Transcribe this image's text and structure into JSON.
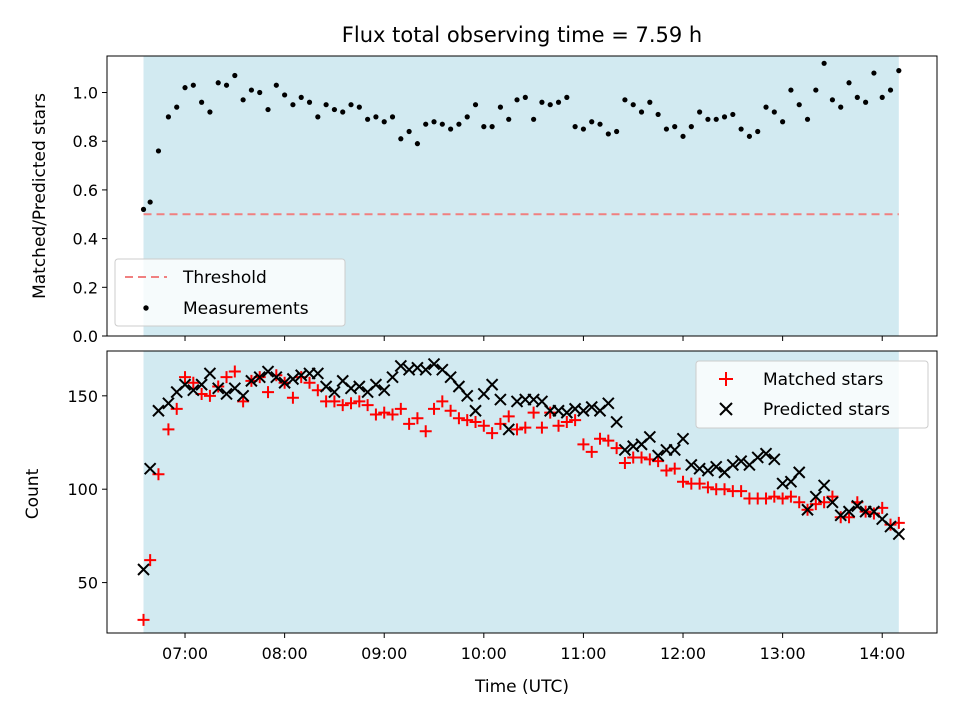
{
  "chart_data": [
    {
      "type": "scatter",
      "title": "Flux total observing time = 7.59 h",
      "xlabel": "",
      "ylabel": "Matched/Predicted stars",
      "xlim": [
        "06:13",
        "14:33"
      ],
      "ylim": [
        0.0,
        1.15
      ],
      "yticks": [
        "0.0",
        "0.2",
        "0.4",
        "0.6",
        "0.8",
        "1.0"
      ],
      "grid": false,
      "legend_position": "lower-left",
      "shaded_interval": [
        "06:35",
        "14:10"
      ],
      "colors": {
        "shade": "#add8e6",
        "threshold": "#f08080",
        "measurements": "#000000"
      },
      "threshold": {
        "name": "Threshold",
        "value": 0.5
      },
      "series": [
        {
          "name": "Measurements",
          "x": [
            "06:35",
            "06:39",
            "06:44",
            "06:50",
            "06:55",
            "07:00",
            "07:05",
            "07:10",
            "07:15",
            "07:20",
            "07:25",
            "07:30",
            "07:35",
            "07:40",
            "07:45",
            "07:50",
            "07:55",
            "08:00",
            "08:05",
            "08:10",
            "08:15",
            "08:20",
            "08:25",
            "08:30",
            "08:35",
            "08:40",
            "08:45",
            "08:50",
            "08:55",
            "09:00",
            "09:05",
            "09:10",
            "09:15",
            "09:20",
            "09:25",
            "09:30",
            "09:35",
            "09:40",
            "09:45",
            "09:50",
            "09:55",
            "10:00",
            "10:05",
            "10:10",
            "10:15",
            "10:20",
            "10:25",
            "10:30",
            "10:35",
            "10:40",
            "10:45",
            "10:50",
            "10:55",
            "11:00",
            "11:05",
            "11:10",
            "11:15",
            "11:20",
            "11:25",
            "11:30",
            "11:35",
            "11:40",
            "11:45",
            "11:50",
            "11:55",
            "12:00",
            "12:05",
            "12:10",
            "12:15",
            "12:20",
            "12:25",
            "12:30",
            "12:35",
            "12:40",
            "12:45",
            "12:50",
            "12:55",
            "13:00",
            "13:05",
            "13:10",
            "13:15",
            "13:20",
            "13:25",
            "13:30",
            "13:35",
            "13:40",
            "13:45",
            "13:50",
            "13:55",
            "14:00",
            "14:05",
            "14:10"
          ],
          "y": [
            0.52,
            0.55,
            0.76,
            0.9,
            0.94,
            1.02,
            1.03,
            0.96,
            0.92,
            1.04,
            1.03,
            1.07,
            0.97,
            1.01,
            1.0,
            0.93,
            1.03,
            0.99,
            0.95,
            0.98,
            0.96,
            0.9,
            0.95,
            0.93,
            0.92,
            0.95,
            0.94,
            0.89,
            0.9,
            0.88,
            0.9,
            0.81,
            0.84,
            0.79,
            0.87,
            0.88,
            0.87,
            0.85,
            0.87,
            0.9,
            0.95,
            0.86,
            0.86,
            0.94,
            0.89,
            0.97,
            0.98,
            0.89,
            0.96,
            0.95,
            0.96,
            0.98,
            0.86,
            0.85,
            0.88,
            0.87,
            0.83,
            0.84,
            0.97,
            0.95,
            0.92,
            0.96,
            0.91,
            0.85,
            0.86,
            0.82,
            0.86,
            0.92,
            0.89,
            0.89,
            0.9,
            0.91,
            0.85,
            0.82,
            0.84,
            0.94,
            0.92,
            0.88,
            1.01,
            0.95,
            0.89,
            1.01,
            1.12,
            0.97,
            0.94,
            1.04,
            0.98,
            0.96,
            1.08,
            0.98,
            1.01,
            1.09
          ]
        }
      ]
    },
    {
      "type": "scatter",
      "title": "",
      "xlabel": "Time (UTC)",
      "ylabel": "Count",
      "xlim": [
        "06:13",
        "14:33"
      ],
      "ylim": [
        23,
        174
      ],
      "xticks": [
        "07:00",
        "08:00",
        "09:00",
        "10:00",
        "11:00",
        "12:00",
        "13:00",
        "14:00"
      ],
      "yticks": [
        "50",
        "100",
        "150"
      ],
      "grid": false,
      "legend_position": "upper-right",
      "shaded_interval": [
        "06:35",
        "14:10"
      ],
      "colors": {
        "shade": "#add8e6",
        "matched": "#ff0000",
        "predicted": "#000000"
      },
      "series": [
        {
          "name": "Matched stars",
          "marker": "plus",
          "x": [
            "06:35",
            "06:39",
            "06:44",
            "06:50",
            "06:55",
            "07:00",
            "07:05",
            "07:10",
            "07:15",
            "07:20",
            "07:25",
            "07:30",
            "07:35",
            "07:40",
            "07:45",
            "07:50",
            "07:55",
            "08:00",
            "08:05",
            "08:10",
            "08:15",
            "08:20",
            "08:25",
            "08:30",
            "08:35",
            "08:40",
            "08:45",
            "08:50",
            "08:55",
            "09:00",
            "09:05",
            "09:10",
            "09:15",
            "09:20",
            "09:25",
            "09:30",
            "09:35",
            "09:40",
            "09:45",
            "09:50",
            "09:55",
            "10:00",
            "10:05",
            "10:10",
            "10:15",
            "10:20",
            "10:25",
            "10:30",
            "10:35",
            "10:40",
            "10:45",
            "10:50",
            "10:55",
            "11:00",
            "11:05",
            "11:10",
            "11:15",
            "11:20",
            "11:25",
            "11:30",
            "11:35",
            "11:40",
            "11:45",
            "11:50",
            "11:55",
            "12:00",
            "12:05",
            "12:10",
            "12:15",
            "12:20",
            "12:25",
            "12:30",
            "12:35",
            "12:40",
            "12:45",
            "12:50",
            "12:55",
            "13:00",
            "13:05",
            "13:10",
            "13:15",
            "13:20",
            "13:25",
            "13:30",
            "13:35",
            "13:40",
            "13:45",
            "13:50",
            "13:55",
            "14:00",
            "14:05",
            "14:10"
          ],
          "y": [
            30,
            62,
            108,
            132,
            143,
            160,
            157,
            151,
            150,
            155,
            160,
            163,
            147,
            158,
            160,
            152,
            161,
            157,
            149,
            160,
            157,
            153,
            147,
            147,
            145,
            146,
            147,
            145,
            140,
            141,
            140,
            143,
            135,
            138,
            131,
            143,
            147,
            142,
            138,
            137,
            136,
            134,
            130,
            135,
            139,
            132,
            133,
            141,
            133,
            141,
            134,
            136,
            137,
            124,
            120,
            127,
            126,
            122,
            114,
            117,
            117,
            116,
            115,
            110,
            111,
            104,
            103,
            103,
            101,
            100,
            100,
            99,
            99,
            95,
            95,
            95,
            96,
            95,
            96,
            93,
            89,
            92,
            93,
            96,
            85,
            85,
            93,
            88,
            87,
            90,
            81,
            82
          ]
        },
        {
          "name": "Predicted stars",
          "marker": "x",
          "x": [
            "06:35",
            "06:39",
            "06:44",
            "06:50",
            "06:55",
            "07:00",
            "07:05",
            "07:10",
            "07:15",
            "07:20",
            "07:25",
            "07:30",
            "07:35",
            "07:40",
            "07:45",
            "07:50",
            "07:55",
            "08:00",
            "08:05",
            "08:10",
            "08:15",
            "08:20",
            "08:25",
            "08:30",
            "08:35",
            "08:40",
            "08:45",
            "08:50",
            "08:55",
            "09:00",
            "09:05",
            "09:10",
            "09:15",
            "09:20",
            "09:25",
            "09:30",
            "09:35",
            "09:40",
            "09:45",
            "09:50",
            "09:55",
            "10:00",
            "10:05",
            "10:10",
            "10:15",
            "10:20",
            "10:25",
            "10:30",
            "10:35",
            "10:40",
            "10:45",
            "10:50",
            "10:55",
            "11:00",
            "11:05",
            "11:10",
            "11:15",
            "11:20",
            "11:25",
            "11:30",
            "11:35",
            "11:40",
            "11:45",
            "11:50",
            "11:55",
            "12:00",
            "12:05",
            "12:10",
            "12:15",
            "12:20",
            "12:25",
            "12:30",
            "12:35",
            "12:40",
            "12:45",
            "12:50",
            "12:55",
            "13:00",
            "13:05",
            "13:10",
            "13:15",
            "13:20",
            "13:25",
            "13:30",
            "13:35",
            "13:40",
            "13:45",
            "13:50",
            "13:55",
            "14:00",
            "14:05",
            "14:10"
          ],
          "y": [
            57,
            111,
            142,
            146,
            152,
            156,
            153,
            156,
            162,
            154,
            151,
            154,
            150,
            158,
            160,
            163,
            160,
            157,
            159,
            161,
            162,
            162,
            155,
            152,
            158,
            154,
            155,
            152,
            156,
            153,
            160,
            166,
            164,
            165,
            164,
            167,
            164,
            160,
            155,
            150,
            142,
            151,
            156,
            148,
            132,
            147,
            148,
            148,
            147,
            142,
            142,
            141,
            143,
            142,
            144,
            142,
            146,
            136,
            121,
            123,
            124,
            128,
            118,
            121,
            121,
            127,
            113,
            111,
            110,
            112,
            109,
            113,
            115,
            113,
            117,
            119,
            116,
            103,
            104,
            109,
            89,
            96,
            102,
            93,
            86,
            88,
            91,
            88,
            88,
            84,
            80,
            76
          ]
        }
      ]
    }
  ]
}
